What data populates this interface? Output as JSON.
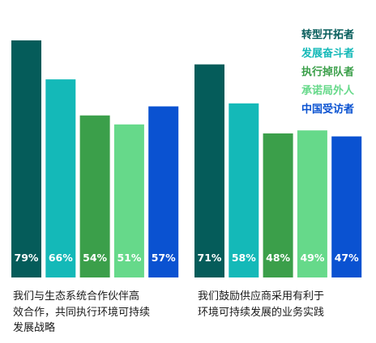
{
  "colors": {
    "transformer": "#055c5a",
    "striver": "#14b9b8",
    "executor": "#3b9f4a",
    "promiser": "#66d98a",
    "china": "#0a52d1"
  },
  "legend": [
    {
      "label": "转型开拓者",
      "color": "#055c5a"
    },
    {
      "label": "发展奋斗者",
      "color": "#14b9b8"
    },
    {
      "label": "执行掉队者",
      "color": "#3b9f4a"
    },
    {
      "label": "承诺局外人",
      "color": "#66d98a"
    },
    {
      "label": "中国受访者",
      "color": "#0a52d1"
    }
  ],
  "chart_data": [
    {
      "type": "bar",
      "caption": "我们与生态系统合作伙伴高效合作，共同执行环境可持续发展战略",
      "caption_lines": [
        "我们与生态系统合作伙伴高",
        "效合作，共同执行环境可持续",
        "发展战略"
      ],
      "values": [
        79,
        66,
        54,
        51,
        57
      ],
      "labels": [
        "79%",
        "66%",
        "54%",
        "51%",
        "57%"
      ],
      "series_colors": [
        "#055c5a",
        "#14b9b8",
        "#3b9f4a",
        "#66d98a",
        "#0a52d1"
      ],
      "ylim": [
        0,
        100
      ]
    },
    {
      "type": "bar",
      "caption": "我们鼓励供应商采用有利于环境可持续发展的业务实践",
      "caption_lines": [
        "我们鼓励供应商采用有利于",
        "环境可持续发展的业务实践"
      ],
      "values": [
        71,
        58,
        48,
        49,
        47
      ],
      "labels": [
        "71%",
        "58%",
        "48%",
        "49%",
        "47%"
      ],
      "series_colors": [
        "#055c5a",
        "#14b9b8",
        "#3b9f4a",
        "#66d98a",
        "#0a52d1"
      ],
      "ylim": [
        0,
        100
      ]
    }
  ]
}
